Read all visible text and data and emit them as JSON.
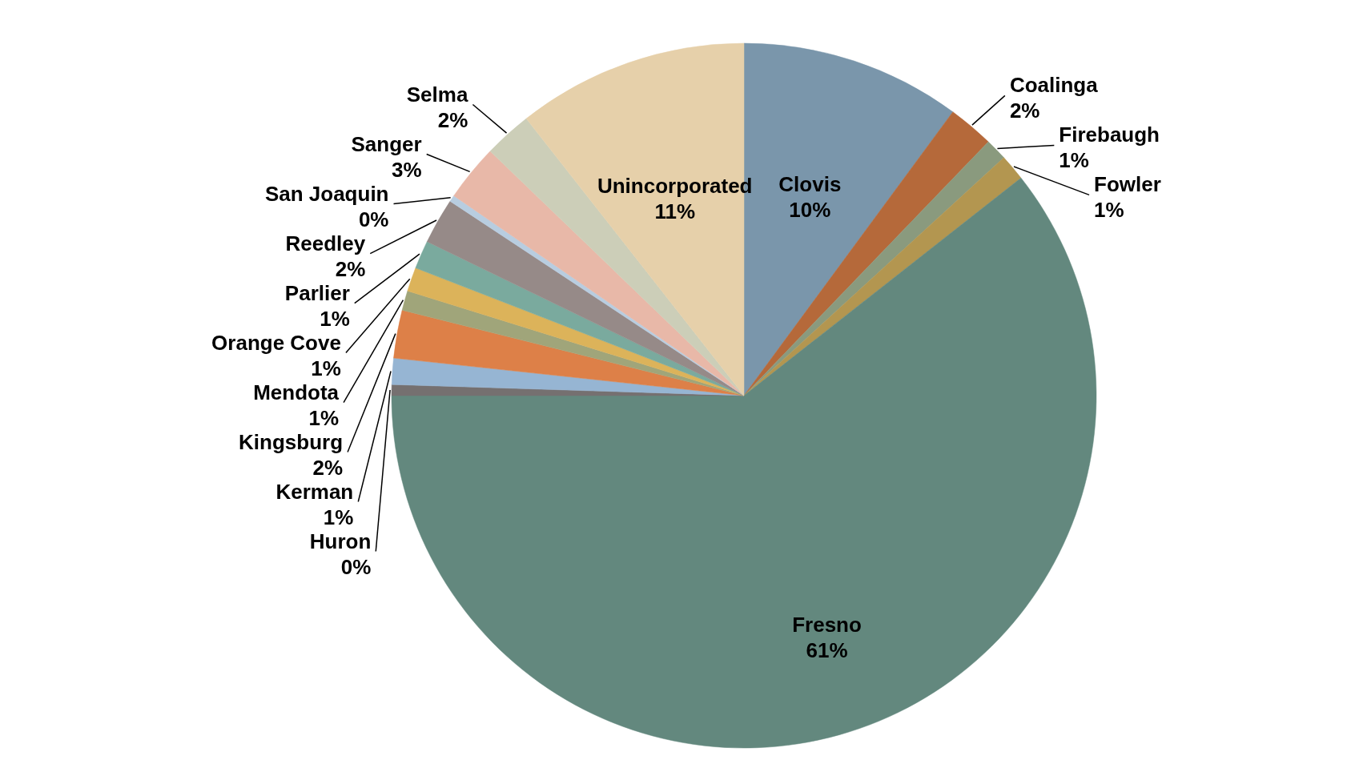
{
  "chart_data": {
    "type": "pie",
    "categories": [
      "Clovis",
      "Coalinga",
      "Firebaugh",
      "Fowler",
      "Fresno",
      "Huron",
      "Kerman",
      "Kingsburg",
      "Mendota",
      "Orange Cove",
      "Parlier",
      "Reedley",
      "San Joaquin",
      "Sanger",
      "Selma",
      "Unincorporated"
    ],
    "values": [
      10.1,
      2.1,
      1.0,
      1.2,
      60.6,
      0.5,
      1.2,
      2.2,
      0.9,
      1.1,
      1.3,
      2.1,
      0.3,
      2.6,
      2.2,
      10.6
    ],
    "value_labels": [
      "10%",
      "2%",
      "1%",
      "1%",
      "61%",
      "0%",
      "1%",
      "2%",
      "1%",
      "1%",
      "1%",
      "2%",
      "0%",
      "3%",
      "2%",
      "11%"
    ],
    "colors": [
      "#7a96ab",
      "#b5693a",
      "#8a9a7e",
      "#b39650",
      "#63887e",
      "#757070",
      "#96b5d3",
      "#dd8048",
      "#a0a57a",
      "#dcb35a",
      "#7aaa9e",
      "#968a88",
      "#b8cde0",
      "#e8b8a8",
      "#ccceb8",
      "#e6d0aa"
    ]
  }
}
